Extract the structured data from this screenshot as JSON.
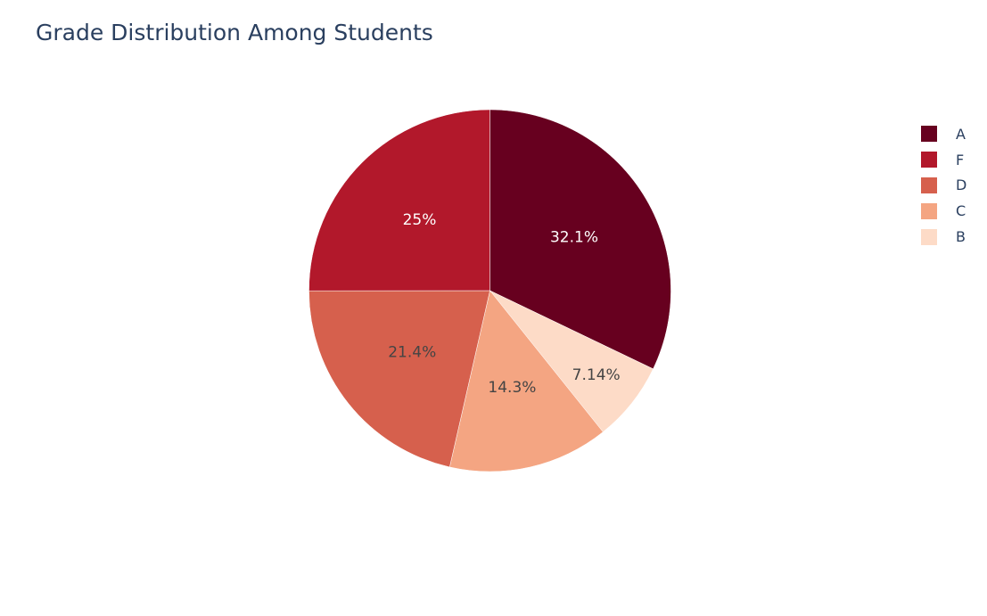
{
  "chart_data": {
    "type": "pie",
    "title": "Grade Distribution Among Students",
    "slices": [
      {
        "label": "A",
        "value": 32.1,
        "text": "32.1%",
        "color": "#67001f",
        "text_color": "#ffffff"
      },
      {
        "label": "B",
        "value": 7.14,
        "text": "7.14%",
        "color": "#fddbc7",
        "text_color": "#444444"
      },
      {
        "label": "C",
        "value": 14.3,
        "text": "14.3%",
        "color": "#f4a582",
        "text_color": "#444444"
      },
      {
        "label": "D",
        "value": 21.4,
        "text": "21.4%",
        "color": "#d6604d",
        "text_color": "#444444"
      },
      {
        "label": "F",
        "value": 25,
        "text": "25%",
        "color": "#b2182b",
        "text_color": "#ffffff"
      }
    ],
    "legend_order": [
      "A",
      "F",
      "D",
      "C",
      "B"
    ],
    "legend_position": "right"
  }
}
